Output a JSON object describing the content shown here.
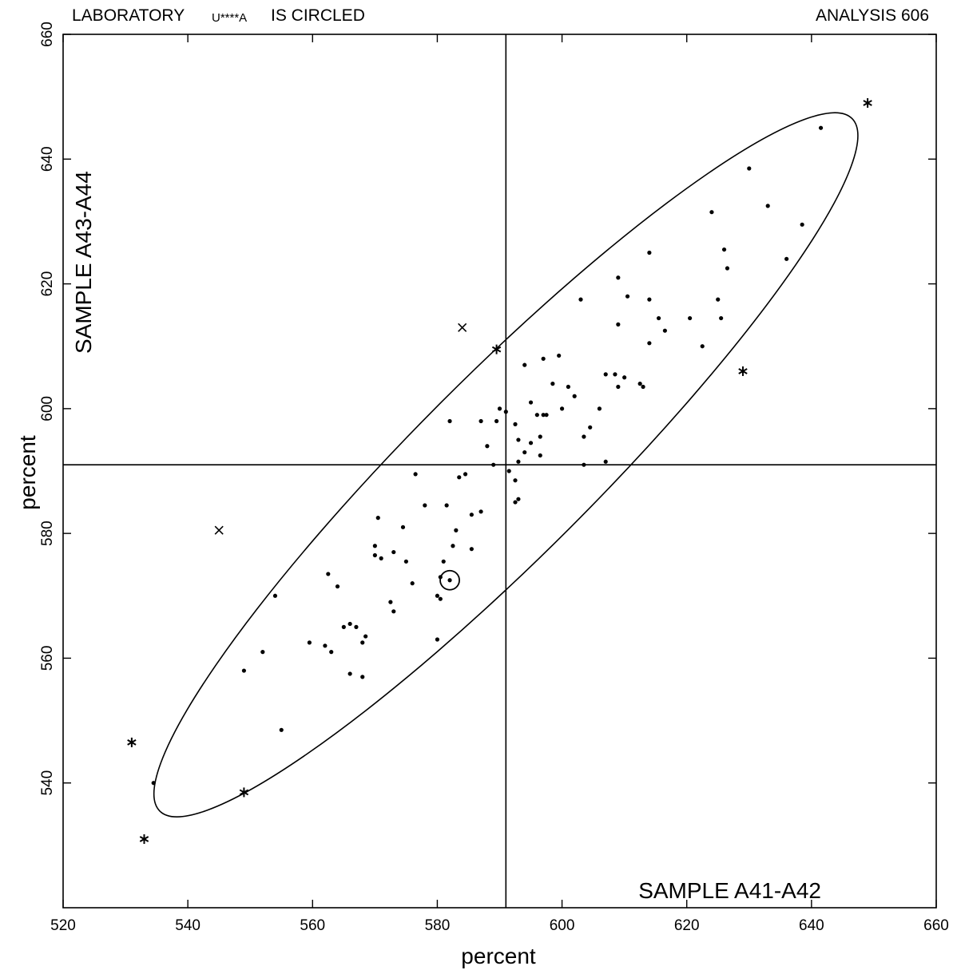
{
  "header": {
    "left_text": "LABORATORY",
    "lab_code": "U****A",
    "circled_text": "IS CIRCLED",
    "right_text": "ANALYSIS 606"
  },
  "chart_data": {
    "type": "scatter",
    "title": "",
    "xlabel": "percent",
    "ylabel": "percent",
    "x_sample_label": "SAMPLE A41-A42",
    "y_sample_label": "SAMPLE A43-A44",
    "xlim": [
      520,
      660
    ],
    "ylim": [
      520,
      660
    ],
    "xticks": [
      520,
      540,
      560,
      580,
      600,
      620,
      640,
      660
    ],
    "yticks": [
      540,
      560,
      580,
      600,
      620,
      640,
      660
    ],
    "median_x": 591,
    "median_y": 591,
    "grid": false,
    "ellipse": {
      "center": [
        591,
        591
      ],
      "major_axis_end_a": [
        535.5,
        535.5
      ],
      "major_axis_end_b": [
        646.5,
        646.5
      ],
      "minor_half_width": 10.2
    },
    "points": [
      [
        641.5,
        645
      ],
      [
        630,
        638.5
      ],
      [
        633,
        632.5
      ],
      [
        624,
        631.5
      ],
      [
        638.5,
        629.5
      ],
      [
        636,
        624
      ],
      [
        614,
        625
      ],
      [
        626,
        625.5
      ],
      [
        626.5,
        622.5
      ],
      [
        609,
        621
      ],
      [
        603,
        617.5
      ],
      [
        610.5,
        618
      ],
      [
        614,
        617.5
      ],
      [
        625,
        617.5
      ],
      [
        609,
        613.5
      ],
      [
        615.5,
        614.5
      ],
      [
        616.5,
        612.5
      ],
      [
        620.5,
        614.5
      ],
      [
        625.5,
        614.5
      ],
      [
        614,
        610.5
      ],
      [
        622.5,
        610
      ],
      [
        599.5,
        608.5
      ],
      [
        597,
        608
      ],
      [
        594,
        607
      ],
      [
        607,
        605.5
      ],
      [
        608.5,
        605.5
      ],
      [
        610,
        605
      ],
      [
        598.5,
        604
      ],
      [
        601,
        603.5
      ],
      [
        602,
        602
      ],
      [
        612.5,
        604
      ],
      [
        613,
        603.5
      ],
      [
        609,
        603.5
      ],
      [
        595,
        601
      ],
      [
        590,
        600
      ],
      [
        591,
        599.5
      ],
      [
        600,
        600
      ],
      [
        606,
        600
      ],
      [
        596,
        599
      ],
      [
        597,
        599
      ],
      [
        597.5,
        599
      ],
      [
        582,
        598
      ],
      [
        587,
        598
      ],
      [
        589.5,
        598
      ],
      [
        592.5,
        597.5
      ],
      [
        604.5,
        597
      ],
      [
        603.5,
        595.5
      ],
      [
        596.5,
        595.5
      ],
      [
        593,
        595
      ],
      [
        595,
        594.5
      ],
      [
        588,
        594
      ],
      [
        594,
        593
      ],
      [
        596.5,
        592.5
      ],
      [
        593,
        591.5
      ],
      [
        589,
        591
      ],
      [
        603.5,
        591
      ],
      [
        607,
        591.5
      ],
      [
        591.5,
        590
      ],
      [
        576.5,
        589.5
      ],
      [
        583.5,
        589
      ],
      [
        584.5,
        589.5
      ],
      [
        592.5,
        588.5
      ],
      [
        581.5,
        584.5
      ],
      [
        578,
        584.5
      ],
      [
        592.5,
        585
      ],
      [
        593,
        585.5
      ],
      [
        587,
        583.5
      ],
      [
        585.5,
        583
      ],
      [
        570.5,
        582.5
      ],
      [
        574.5,
        581
      ],
      [
        583,
        580.5
      ],
      [
        570,
        578
      ],
      [
        582.5,
        578
      ],
      [
        585.5,
        577.5
      ],
      [
        570,
        576.5
      ],
      [
        571,
        576
      ],
      [
        573,
        577
      ],
      [
        575,
        575.5
      ],
      [
        581,
        575.5
      ],
      [
        562.5,
        573.5
      ],
      [
        580.5,
        573
      ],
      [
        564,
        571.5
      ],
      [
        576,
        572
      ],
      [
        554,
        570
      ],
      [
        580,
        570
      ],
      [
        580.5,
        569.5
      ],
      [
        572.5,
        569
      ],
      [
        573,
        567.5
      ],
      [
        566,
        565.5
      ],
      [
        567,
        565
      ],
      [
        565,
        565
      ],
      [
        568.5,
        563.5
      ],
      [
        568,
        562.5
      ],
      [
        559.5,
        562.5
      ],
      [
        562,
        562
      ],
      [
        563,
        561
      ],
      [
        552,
        561
      ],
      [
        580,
        563
      ],
      [
        549,
        558
      ],
      [
        566,
        557.5
      ],
      [
        568,
        557
      ],
      [
        555,
        548.5
      ],
      [
        534.5,
        540
      ]
    ],
    "outliers_star": [
      [
        649,
        649
      ],
      [
        589.5,
        609.5
      ],
      [
        629,
        606
      ],
      [
        531,
        546.5
      ],
      [
        549,
        538.5
      ],
      [
        533,
        531
      ]
    ],
    "outliers_x": [
      [
        584,
        613
      ],
      [
        545,
        580.5
      ]
    ],
    "circled_lab_point": [
      582,
      572.5
    ]
  }
}
